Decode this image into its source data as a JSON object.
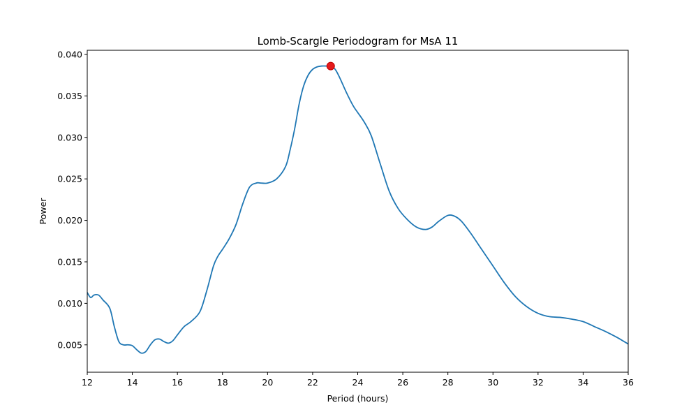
{
  "chart_data": {
    "type": "line",
    "title": "Lomb-Scargle Periodogram for MsA 11",
    "xlabel": "Period (hours)",
    "ylabel": "Power",
    "xlim": [
      12,
      36
    ],
    "ylim": [
      0.0017,
      0.0405
    ],
    "xticks": [
      12,
      14,
      16,
      18,
      20,
      22,
      24,
      26,
      28,
      30,
      32,
      34,
      36
    ],
    "xtick_labels": [
      "12",
      "14",
      "16",
      "18",
      "20",
      "22",
      "24",
      "26",
      "28",
      "30",
      "32",
      "34",
      "36"
    ],
    "yticks": [
      0.005,
      0.01,
      0.015,
      0.02,
      0.025,
      0.03,
      0.035,
      0.04
    ],
    "ytick_labels": [
      "0.005",
      "0.010",
      "0.015",
      "0.020",
      "0.025",
      "0.030",
      "0.035",
      "0.040"
    ],
    "grid": false,
    "series": [
      {
        "color": "#1f77b4",
        "x": [
          12.0,
          12.15,
          12.3,
          12.5,
          12.7,
          13.0,
          13.2,
          13.4,
          13.6,
          13.8,
          14.0,
          14.2,
          14.4,
          14.6,
          14.8,
          15.0,
          15.2,
          15.4,
          15.6,
          15.8,
          16.0,
          16.3,
          16.6,
          17.0,
          17.3,
          17.6,
          17.8,
          18.0,
          18.3,
          18.6,
          18.9,
          19.2,
          19.5,
          19.7,
          20.0,
          20.4,
          20.8,
          21.0,
          21.2,
          21.4,
          21.6,
          21.8,
          22.0,
          22.2,
          22.4,
          22.6,
          22.8,
          23.0,
          23.2,
          23.5,
          23.8,
          24.0,
          24.3,
          24.6,
          25.0,
          25.4,
          25.8,
          26.2,
          26.6,
          27.0,
          27.3,
          27.6,
          28.0,
          28.3,
          28.6,
          29.0,
          29.5,
          30.0,
          30.5,
          31.0,
          31.5,
          32.0,
          32.5,
          33.0,
          33.5,
          34.0,
          34.5,
          35.0,
          35.5,
          36.0
        ],
        "y": [
          0.0113,
          0.0107,
          0.011,
          0.011,
          0.0104,
          0.0094,
          0.0072,
          0.0054,
          0.005,
          0.005,
          0.0049,
          0.0044,
          0.004,
          0.0042,
          0.005,
          0.0056,
          0.0057,
          0.0054,
          0.0052,
          0.0055,
          0.0062,
          0.0072,
          0.0078,
          0.009,
          0.0115,
          0.0145,
          0.0157,
          0.0165,
          0.0178,
          0.0195,
          0.022,
          0.024,
          0.0245,
          0.0245,
          0.0245,
          0.025,
          0.0265,
          0.0285,
          0.031,
          0.034,
          0.0362,
          0.0375,
          0.0382,
          0.0385,
          0.0386,
          0.0386,
          0.0386,
          0.0382,
          0.0372,
          0.0354,
          0.0338,
          0.033,
          0.0318,
          0.0302,
          0.0268,
          0.0235,
          0.0214,
          0.0201,
          0.0192,
          0.0189,
          0.0192,
          0.0199,
          0.0206,
          0.0205,
          0.0199,
          0.0185,
          0.0165,
          0.0145,
          0.0125,
          0.0108,
          0.0096,
          0.0088,
          0.0084,
          0.0083,
          0.0081,
          0.0078,
          0.0072,
          0.0066,
          0.0059,
          0.0051
        ]
      }
    ],
    "peak": {
      "x": 22.8,
      "y": 0.0386,
      "color": "#e41a1c"
    }
  }
}
